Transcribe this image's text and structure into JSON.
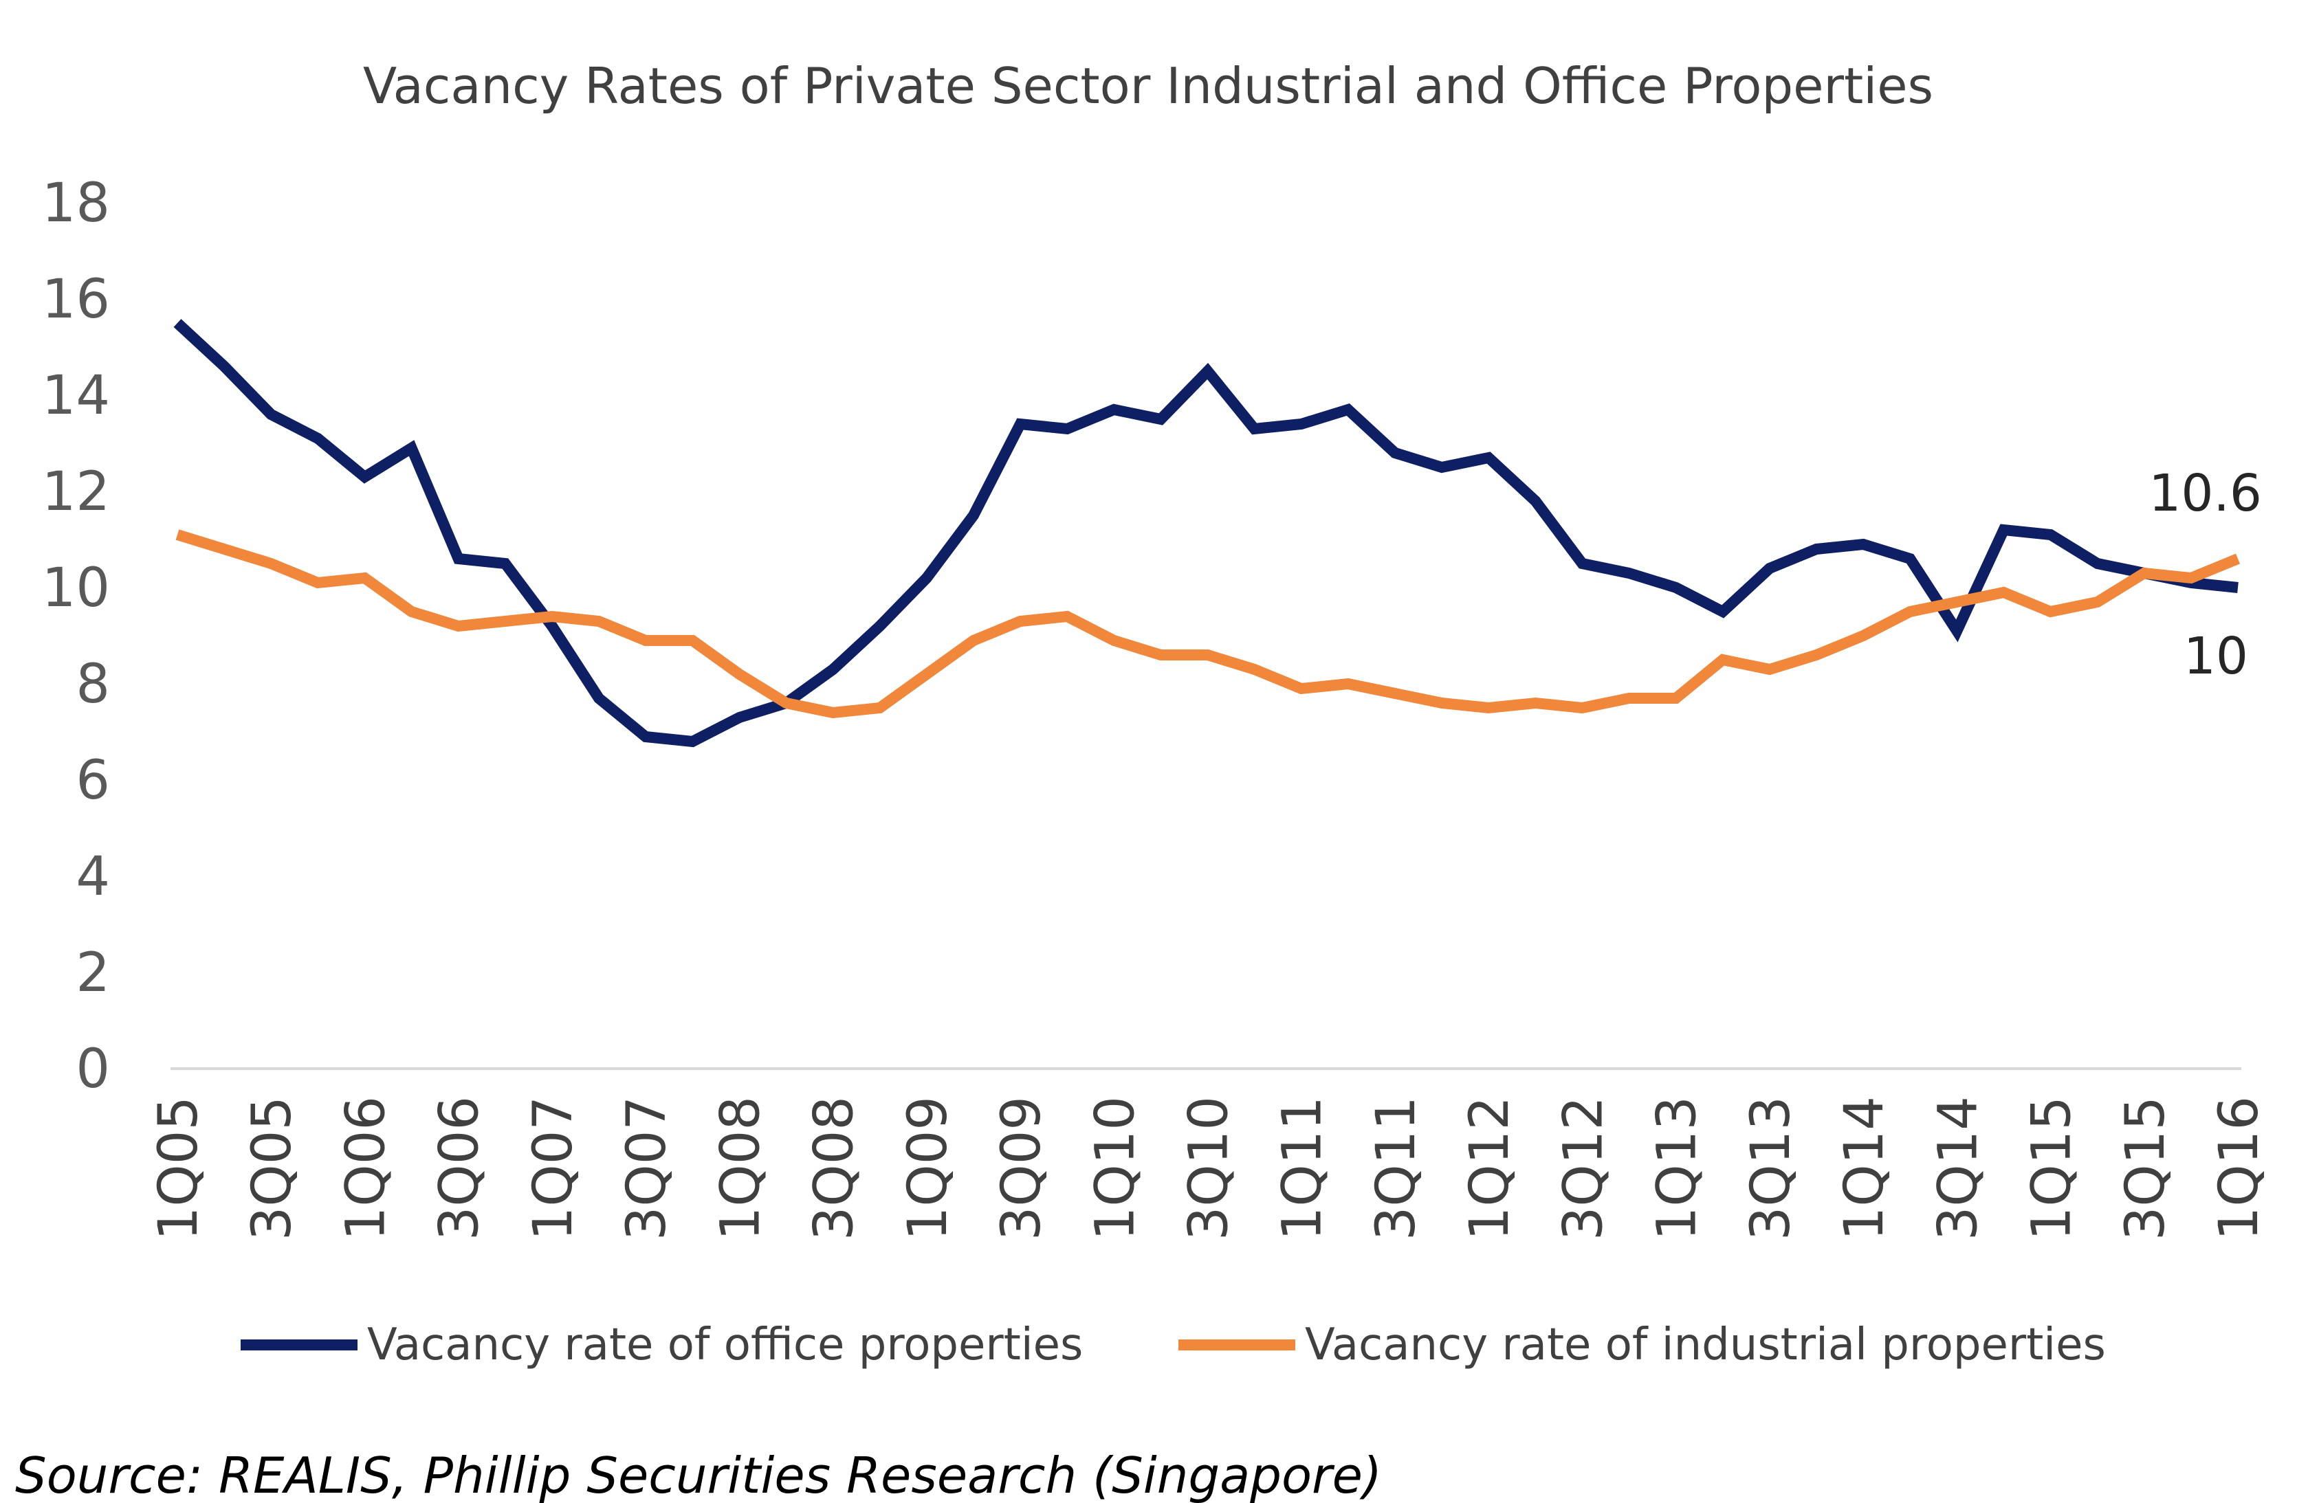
{
  "chart_data": {
    "type": "line",
    "title": "Vacancy Rates of Private Sector Industrial and Office Properties",
    "xlabel": "",
    "ylabel": "",
    "ylim": [
      0,
      18
    ],
    "yticks": [
      0,
      2,
      4,
      6,
      8,
      10,
      12,
      14,
      16,
      18
    ],
    "x": [
      "1Q05",
      "2Q05",
      "3Q05",
      "4Q05",
      "1Q06",
      "2Q06",
      "3Q06",
      "4Q06",
      "1Q07",
      "2Q07",
      "3Q07",
      "4Q07",
      "1Q08",
      "2Q08",
      "3Q08",
      "4Q08",
      "1Q09",
      "2Q09",
      "3Q09",
      "4Q09",
      "1Q10",
      "2Q10",
      "3Q10",
      "4Q10",
      "1Q11",
      "2Q11",
      "3Q11",
      "4Q11",
      "1Q12",
      "2Q12",
      "3Q12",
      "4Q12",
      "1Q13",
      "2Q13",
      "3Q13",
      "4Q13",
      "1Q14",
      "2Q14",
      "3Q14",
      "4Q14",
      "1Q15",
      "2Q15",
      "3Q15",
      "4Q15",
      "1Q16"
    ],
    "x_tick_labels": [
      "1Q05",
      "3Q05",
      "1Q06",
      "3Q06",
      "1Q07",
      "3Q07",
      "1Q08",
      "3Q08",
      "1Q09",
      "3Q09",
      "1Q10",
      "3Q10",
      "1Q11",
      "3Q11",
      "1Q12",
      "3Q12",
      "1Q13",
      "3Q13",
      "1Q14",
      "3Q14",
      "1Q15",
      "3Q15",
      "1Q16"
    ],
    "grid": false,
    "legend_position": "bottom",
    "series": [
      {
        "name": "Vacancy rate of office properties",
        "color": "#0E2063",
        "values": [
          15.5,
          14.6,
          13.6,
          13.1,
          12.3,
          12.9,
          10.6,
          10.5,
          9.2,
          7.7,
          6.9,
          6.8,
          7.3,
          7.6,
          8.3,
          9.2,
          10.2,
          11.5,
          13.4,
          13.3,
          13.7,
          13.5,
          14.5,
          13.3,
          13.4,
          13.7,
          12.8,
          12.5,
          12.7,
          11.8,
          10.5,
          10.3,
          10.0,
          9.5,
          10.4,
          10.8,
          10.9,
          10.6,
          9.1,
          11.2,
          11.1,
          10.5,
          10.3,
          10.1,
          10.0
        ],
        "end_label": "10"
      },
      {
        "name": "Vacancy rate of industrial properties",
        "color": "#F0873A",
        "values": [
          11.1,
          10.8,
          10.5,
          10.1,
          10.2,
          9.5,
          9.2,
          9.3,
          9.4,
          9.3,
          8.9,
          8.9,
          8.2,
          7.6,
          7.4,
          7.5,
          8.2,
          8.9,
          9.3,
          9.4,
          8.9,
          8.6,
          8.6,
          8.3,
          7.9,
          8.0,
          7.8,
          7.6,
          7.5,
          7.6,
          7.5,
          7.7,
          7.7,
          8.5,
          8.3,
          8.6,
          9.0,
          9.5,
          9.7,
          9.9,
          9.5,
          9.7,
          10.3,
          10.2,
          10.6
        ],
        "end_label": "10.6"
      }
    ]
  },
  "source": "Source: REALIS, Phillip Securities Research (Singapore)",
  "colors": {
    "axis": "#D9D9D9",
    "office": "#0E2063",
    "industrial": "#F0873A"
  }
}
